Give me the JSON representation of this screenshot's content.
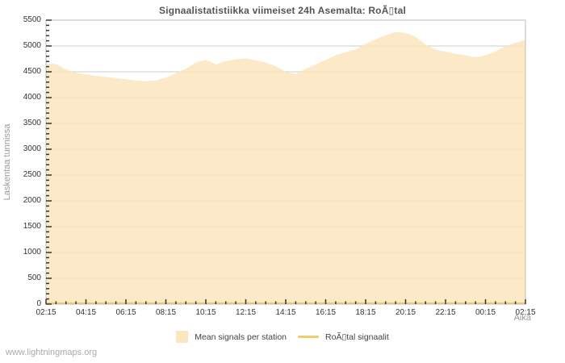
{
  "title": "Signaalistatistiikka viimeiset 24h Asemalta: RoÃ▯tal",
  "watermark": "www.lightningmaps.org",
  "axes": {
    "y_label": "Laskentaa tunnissa",
    "x_label": "Aika"
  },
  "legend": {
    "area_label": "Mean signals per station",
    "line_label": "RoÃ▯tal signaalit"
  },
  "colors": {
    "area_fill": "#fae5bd",
    "line_color": "#eecf6a",
    "gridline": "#cccccc",
    "plot_border": "#bbbbbb",
    "tick": "#333333",
    "title_text": "#555555",
    "muted_text": "#999999"
  },
  "chart_data": {
    "type": "area",
    "title": "Signaalistatistiikka viimeiset 24h Asemalta: RoÃ▯tal",
    "xlabel": "Aika",
    "ylabel": "Laskentaa tunnissa",
    "ylim": [
      0,
      5500
    ],
    "y_tick_step": 500,
    "y_minor_step": 100,
    "grid": "horizontal",
    "legend_position": "bottom",
    "x_tick_labels": [
      "02:15",
      "04:15",
      "06:15",
      "08:15",
      "10:15",
      "12:15",
      "14:15",
      "16:15",
      "18:15",
      "20:15",
      "22:15",
      "00:15",
      "02:15"
    ],
    "x_minor_minutes": 30,
    "x": [
      "02:15",
      "02:45",
      "03:15",
      "03:45",
      "04:15",
      "04:45",
      "05:15",
      "05:45",
      "06:15",
      "06:45",
      "07:15",
      "07:45",
      "08:15",
      "08:45",
      "09:15",
      "09:45",
      "10:15",
      "10:45",
      "11:15",
      "11:45",
      "12:15",
      "12:45",
      "13:15",
      "13:45",
      "14:15",
      "14:45",
      "15:15",
      "15:45",
      "16:15",
      "16:45",
      "17:15",
      "17:45",
      "18:15",
      "18:45",
      "19:15",
      "19:45",
      "20:15",
      "20:45",
      "21:15",
      "21:45",
      "22:15",
      "22:45",
      "23:15",
      "23:45",
      "00:15",
      "00:45",
      "01:15",
      "01:45",
      "02:15"
    ],
    "series": [
      {
        "name": "Mean signals per station",
        "style": "area",
        "color": "#fae5bd",
        "values": [
          4660,
          4650,
          4545,
          4480,
          4450,
          4420,
          4400,
          4380,
          4355,
          4330,
          4320,
          4330,
          4390,
          4470,
          4560,
          4680,
          4730,
          4645,
          4710,
          4740,
          4760,
          4720,
          4680,
          4610,
          4500,
          4455,
          4560,
          4645,
          4730,
          4820,
          4880,
          4930,
          5040,
          5130,
          5210,
          5270,
          5255,
          5175,
          5030,
          4930,
          4890,
          4850,
          4820,
          4780,
          4820,
          4890,
          4995,
          5060,
          5120
        ]
      },
      {
        "name": "RoÃ▯tal signaalit",
        "style": "line",
        "color": "#eecf6a",
        "values": [
          20,
          20,
          20,
          20,
          20,
          20,
          20,
          20,
          20,
          20,
          20,
          20,
          20,
          20,
          20,
          20,
          20,
          20,
          20,
          20,
          20,
          20,
          20,
          20,
          20,
          20,
          20,
          20,
          20,
          20,
          20,
          20,
          20,
          20,
          20,
          20,
          20,
          20,
          20,
          20,
          20,
          20,
          20,
          20,
          20,
          20,
          20,
          20,
          20
        ]
      }
    ]
  }
}
